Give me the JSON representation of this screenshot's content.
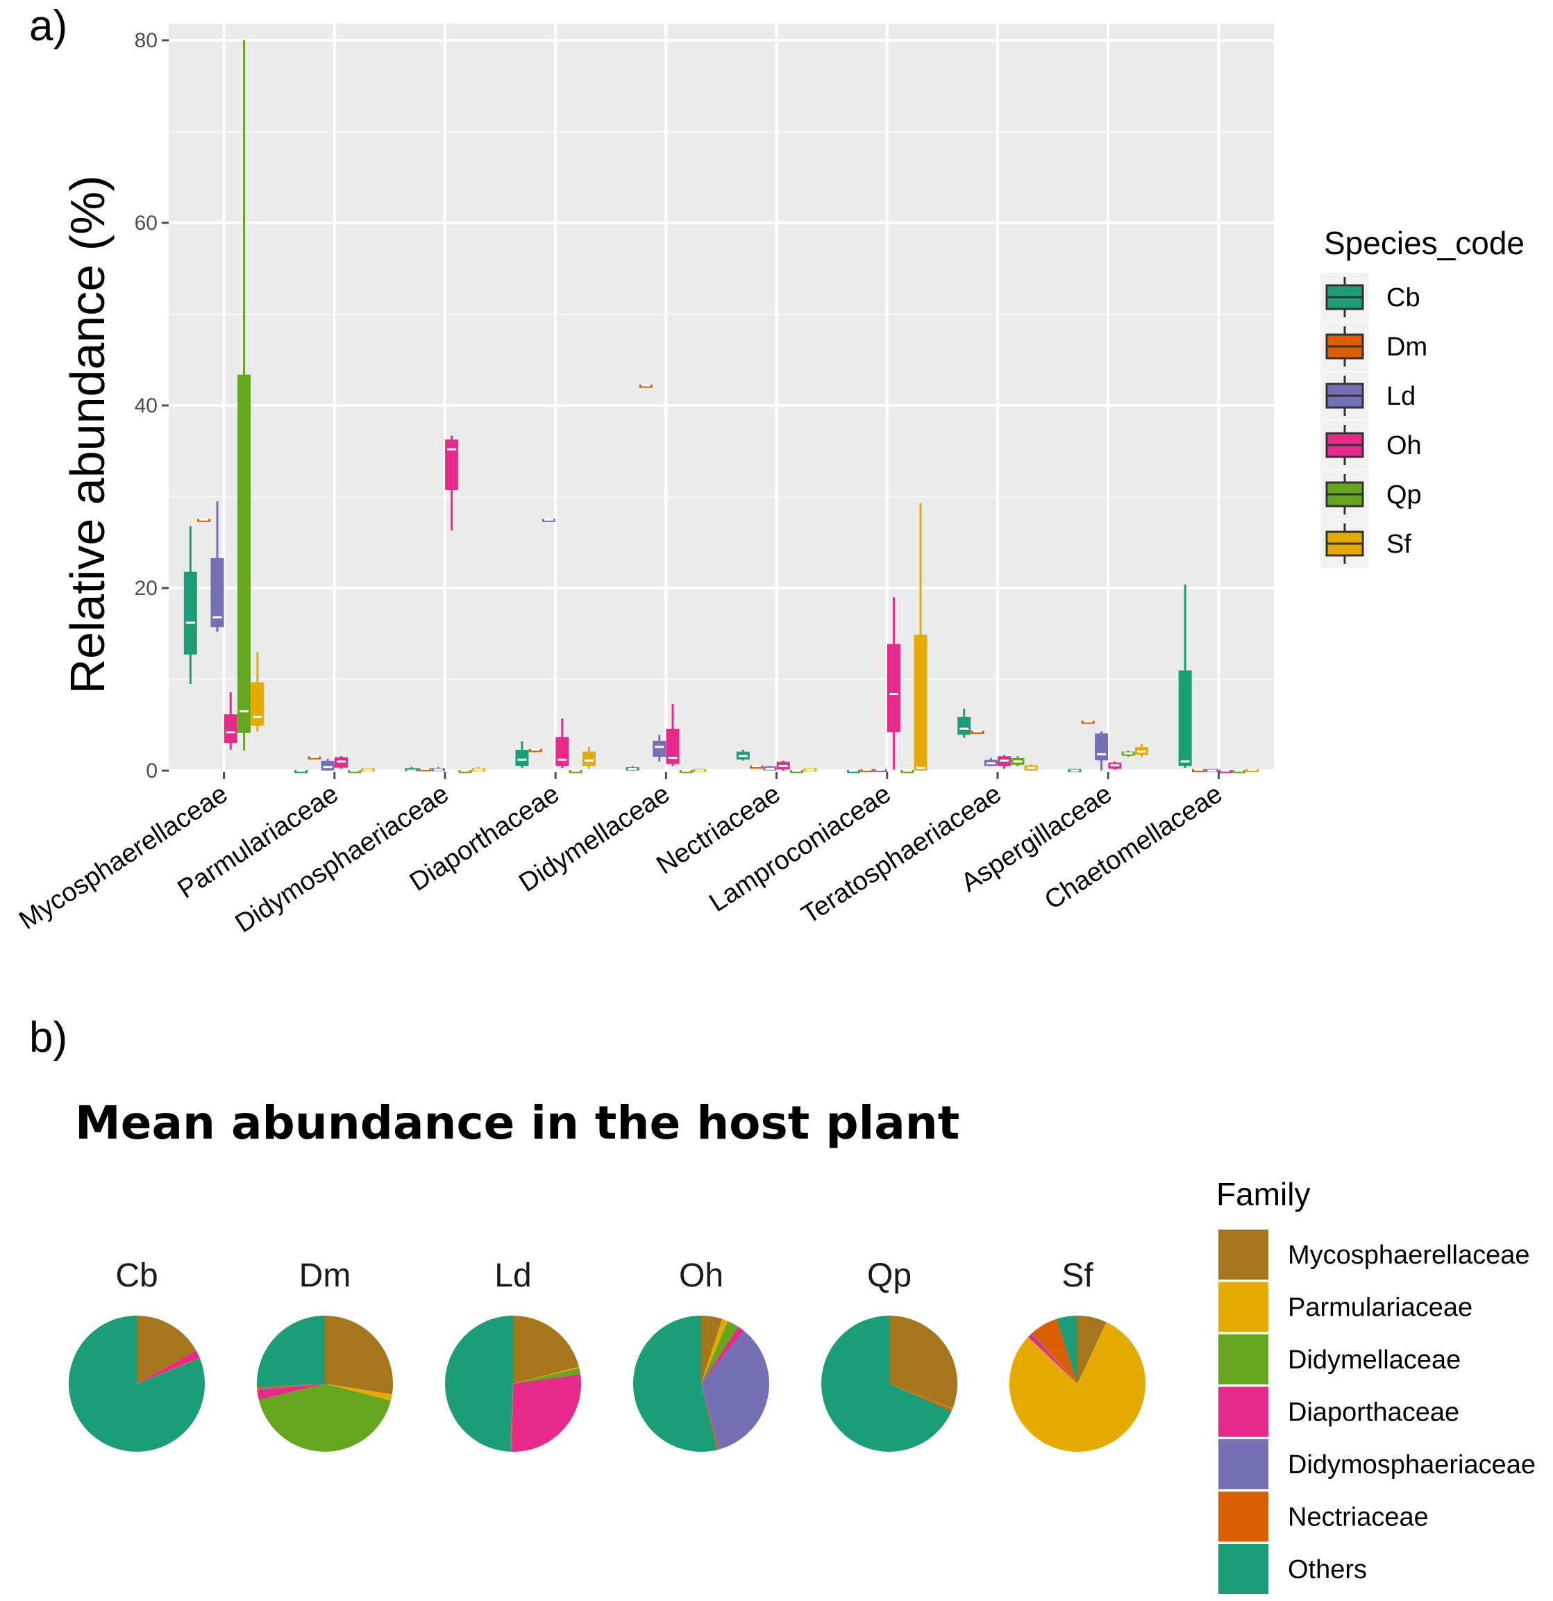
{
  "panel_a_label": "a)",
  "panel_b_label": "b)",
  "chart_data": [
    {
      "type": "box",
      "ylabel": "Relative abundance (%)",
      "xlabel": "",
      "ylim": [
        0,
        80
      ],
      "yticks": [
        0,
        20,
        40,
        60,
        80
      ],
      "legend_title": "Species_code",
      "legend_position": "right",
      "categories": [
        "Mycosphaerellaceae",
        "Parmulariaceae",
        "Didymosphaeriaceae",
        "Diaporthaceae",
        "Didymellaceae",
        "Nectriaceae",
        "Lamproconiaceae",
        "Teratosphaeriaceae",
        "Aspergillaceae",
        "Chaetomellaceae"
      ],
      "series": [
        {
          "name": "Cb",
          "color": "#1b9e77",
          "boxes": [
            [
              9.5,
              12.8,
              16.2,
              21.7,
              26.8
            ],
            [
              0,
              0,
              0,
              0,
              0.1
            ],
            [
              0,
              0,
              0,
              0.2,
              0.4
            ],
            [
              0.3,
              0.6,
              1.2,
              2.2,
              3.2
            ],
            [
              0,
              0.1,
              0.2,
              0.3,
              0.5
            ],
            [
              1.1,
              1.3,
              1.6,
              2.0,
              2.3
            ],
            [
              0,
              0,
              0,
              0,
              0.1
            ],
            [
              3.6,
              4.0,
              4.6,
              5.8,
              6.8
            ],
            [
              0,
              0,
              0,
              0.1,
              0.2
            ],
            [
              0.3,
              0.6,
              1.0,
              10.9,
              20.4
            ]
          ]
        },
        {
          "name": "Dm",
          "color": "#d95f02",
          "boxes": [
            [
              27.5,
              27.5,
              27.5,
              27.5,
              27.5
            ],
            [
              1.5,
              1.5,
              1.5,
              1.5,
              1.5
            ],
            [
              0.2,
              0.2,
              0.2,
              0.2,
              0.2
            ],
            [
              2.3,
              2.3,
              2.3,
              2.3,
              2.3
            ],
            [
              42.2,
              42.2,
              42.2,
              42.2,
              42.2
            ],
            [
              0.5,
              0.5,
              0.5,
              0.5,
              0.5
            ],
            [
              0.1,
              0.1,
              0.1,
              0.1,
              0.1
            ],
            [
              4.3,
              4.3,
              4.3,
              4.3,
              4.3
            ],
            [
              5.4,
              5.4,
              5.4,
              5.4,
              5.4
            ],
            [
              0.1,
              0.1,
              0.1,
              0.1,
              0.1
            ]
          ]
        },
        {
          "name": "Ld",
          "color": "#7570b3",
          "boxes": [
            [
              15.2,
              15.8,
              16.8,
              23.2,
              29.5
            ],
            [
              0,
              0.1,
              0.4,
              1.0,
              1.3
            ],
            [
              0,
              0,
              0.1,
              0.2,
              0.4
            ],
            [
              27.5,
              27.5,
              27.5,
              27.5,
              27.5
            ],
            [
              1.0,
              1.6,
              2.6,
              3.2,
              3.9
            ],
            [
              0,
              0.1,
              0.2,
              0.4,
              0.5
            ],
            [
              0,
              0,
              0.1,
              0.1,
              0.2
            ],
            [
              0.5,
              0.6,
              0.8,
              1.1,
              1.4
            ],
            [
              0,
              1.2,
              1.8,
              4.0,
              4.3
            ],
            [
              0,
              0,
              0,
              0.1,
              0.2
            ]
          ]
        },
        {
          "name": "Oh",
          "color": "#e7298a",
          "boxes": [
            [
              2.3,
              3.1,
              4.2,
              6.1,
              8.6
            ],
            [
              0.2,
              0.4,
              1.0,
              1.4,
              1.6
            ],
            [
              26.3,
              30.8,
              35.2,
              36.2,
              36.7
            ],
            [
              0.3,
              0.6,
              1.2,
              3.6,
              5.7
            ],
            [
              0.5,
              0.8,
              1.4,
              4.5,
              7.3
            ],
            [
              0,
              0.2,
              0.5,
              0.9,
              1.1
            ],
            [
              0.1,
              4.3,
              8.4,
              13.8,
              19.0
            ],
            [
              0.2,
              0.6,
              1.1,
              1.5,
              1.7
            ],
            [
              0.1,
              0.3,
              0.6,
              0.8,
              1.0
            ],
            [
              0,
              0,
              0,
              0,
              0.1
            ]
          ]
        },
        {
          "name": "Qp",
          "color": "#66a61e",
          "boxes": [
            [
              2.2,
              4.2,
              6.5,
              43.3,
              80.0
            ],
            [
              0,
              0,
              0,
              0,
              0.1
            ],
            [
              0,
              0,
              0,
              0,
              0.1
            ],
            [
              0,
              0,
              0,
              0,
              0.1
            ],
            [
              0,
              0,
              0,
              0,
              0.1
            ],
            [
              0,
              0,
              0,
              0,
              0.1
            ],
            [
              0,
              0,
              0,
              0,
              0.1
            ],
            [
              0.5,
              0.7,
              1.0,
              1.3,
              1.6
            ],
            [
              1.5,
              1.7,
              1.9,
              2.0,
              2.2
            ],
            [
              0,
              0,
              0,
              0,
              0.1
            ]
          ]
        },
        {
          "name": "Sf",
          "color": "#e6ab02",
          "boxes": [
            [
              4.3,
              5.0,
              5.9,
              9.6,
              13.0
            ],
            [
              0,
              0,
              0.1,
              0.2,
              0.3
            ],
            [
              0,
              0,
              0.1,
              0.2,
              0.4
            ],
            [
              0.2,
              0.6,
              1.1,
              2.0,
              2.6
            ],
            [
              0,
              0,
              0,
              0.1,
              0.2
            ],
            [
              0,
              0,
              0.1,
              0.2,
              0.3
            ],
            [
              0,
              0.1,
              0.3,
              14.8,
              29.3
            ],
            [
              0,
              0.1,
              0.3,
              0.5,
              0.7
            ],
            [
              1.5,
              1.8,
              2.1,
              2.5,
              2.9
            ],
            [
              0,
              0,
              0.1,
              0.1,
              0.2
            ]
          ]
        }
      ]
    },
    {
      "type": "pie",
      "title": "Mean abundance in the host plant",
      "legend_title": "Family",
      "legend_position": "right",
      "families": [
        {
          "name": "Mycosphaerellaceae",
          "color": "#a6761d"
        },
        {
          "name": "Parmulariaceae",
          "color": "#e6ab02"
        },
        {
          "name": "Didymellaceae",
          "color": "#66a61e"
        },
        {
          "name": "Diaporthaceae",
          "color": "#e7298a"
        },
        {
          "name": "Didymosphaeriaceae",
          "color": "#7570b3"
        },
        {
          "name": "Nectriaceae",
          "color": "#d95f02"
        },
        {
          "name": "Others",
          "color": "#1b9e77"
        }
      ],
      "pies": [
        {
          "label": "Cb",
          "values": [
            16.9,
            0,
            0,
            1.8,
            0,
            0.2,
            81.1
          ]
        },
        {
          "label": "Dm",
          "values": [
            27.5,
            1.5,
            42.2,
            2.3,
            0.2,
            0.5,
            25.8
          ]
        },
        {
          "label": "Ld",
          "values": [
            21.0,
            0.3,
            1.5,
            27.5,
            0.2,
            0.2,
            49.3
          ]
        },
        {
          "label": "Oh",
          "values": [
            5.0,
            1.4,
            2.8,
            1.6,
            35.0,
            0.4,
            53.8
          ]
        },
        {
          "label": "Qp",
          "values": [
            31.0,
            0.1,
            0,
            0,
            0,
            0.5,
            68.4
          ]
        },
        {
          "label": "Sf",
          "values": [
            7.0,
            80.0,
            0.1,
            1.0,
            0.2,
            6.8,
            4.9
          ]
        }
      ]
    }
  ]
}
